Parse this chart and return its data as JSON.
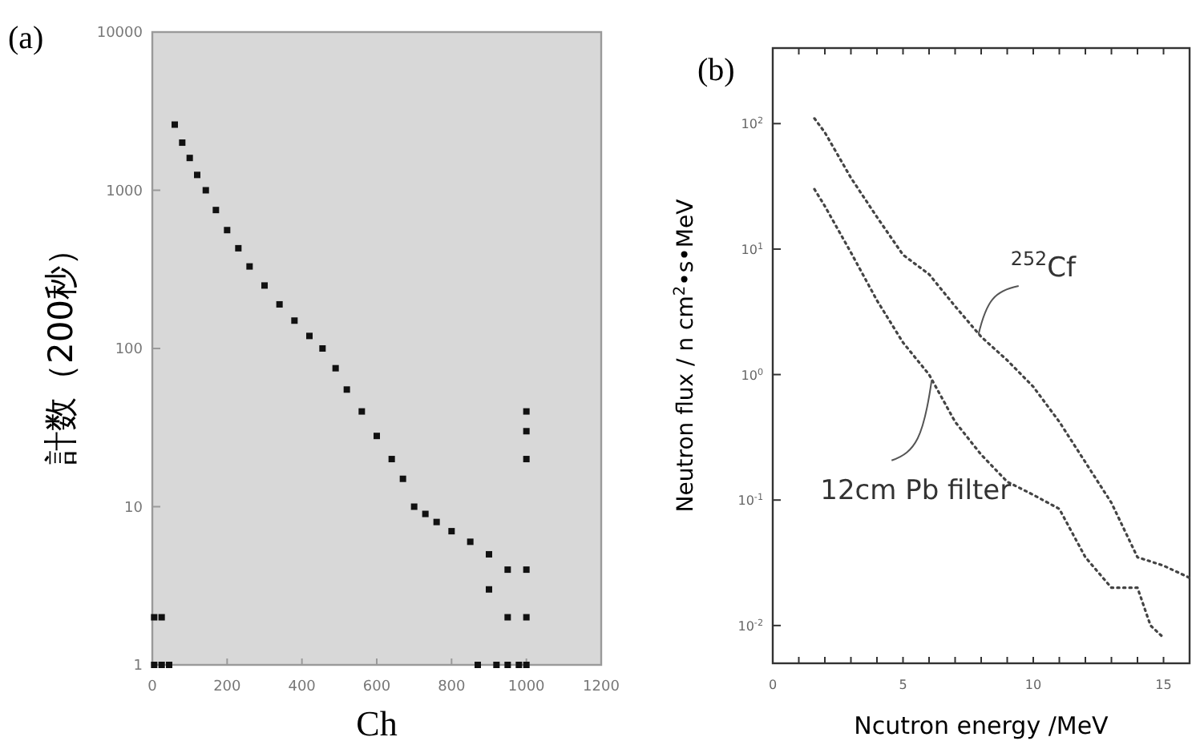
{
  "chart_data": [
    {
      "type": "scatter",
      "title": "(a)",
      "xlabel": "Ch",
      "ylabel": "計数（200秒）",
      "log": "y",
      "marker": "square",
      "xlim": [
        0,
        1200
      ],
      "xticks": [
        0,
        200,
        400,
        600,
        800,
        1000,
        1200
      ],
      "ylim": [
        1,
        10000
      ],
      "yticks": [
        1,
        10,
        100,
        1000,
        10000
      ],
      "series": [
        {
          "color": "#111111",
          "x": [
            60,
            80,
            100,
            120,
            143,
            170,
            200,
            230,
            260,
            300,
            340,
            380,
            420,
            455,
            490,
            520,
            560,
            600,
            640,
            670,
            700,
            730,
            760,
            800,
            850,
            900,
            950,
            1000,
            900,
            950,
            1000,
            950,
            1000,
            870,
            920,
            980,
            5,
            25,
            45,
            5,
            25,
            1000,
            1000,
            1000
          ],
          "values": [
            2600,
            2000,
            1600,
            1250,
            1000,
            750,
            560,
            430,
            330,
            250,
            190,
            150,
            120,
            100,
            75,
            55,
            40,
            28,
            20,
            15,
            10,
            9,
            8,
            7,
            6,
            5,
            4,
            4,
            3,
            2,
            2,
            1,
            1,
            1,
            1,
            1,
            1,
            1,
            1,
            2,
            2,
            20,
            30,
            40
          ]
        }
      ]
    },
    {
      "type": "line",
      "title": "(b)",
      "xlabel": "Ncutron energy /MeV",
      "ylabel": "Neutron flux / n cm$^{2}$•s•MeV",
      "log": "y",
      "line_style": "dotted",
      "xlim": [
        0,
        16
      ],
      "xticks": [
        0,
        {
          "value": 1,
          "label": null
        },
        {
          "value": 2,
          "label": null
        },
        {
          "value": 3,
          "label": null
        },
        {
          "value": 4,
          "label": null
        },
        5,
        {
          "value": 6,
          "label": null
        },
        {
          "value": 7,
          "label": null
        },
        {
          "value": 8,
          "label": null
        },
        {
          "value": 9,
          "label": null
        },
        10,
        {
          "value": 11,
          "label": null
        },
        {
          "value": 12,
          "label": null
        },
        {
          "value": 13,
          "label": null
        },
        {
          "value": 14,
          "label": null
        },
        15
      ],
      "ylim": [
        0.005,
        400
      ],
      "yticks": [
        {
          "value": 0.01,
          "label": "10$^{-2}$"
        },
        {
          "value": 0.1,
          "label": "10$^{-1}$"
        },
        {
          "value": 1,
          "label": "10$^{0}$"
        },
        {
          "value": 10,
          "label": "10$^{1}$"
        },
        {
          "value": 100,
          "label": "10$^{2}$"
        }
      ],
      "series": [
        {
          "color": "#444444",
          "x": [
            1.6,
            2,
            3,
            4,
            5,
            6,
            7,
            8,
            9,
            10,
            11,
            12,
            13,
            14,
            15,
            16
          ],
          "values": [
            110,
            85,
            37,
            18,
            9,
            6.3,
            3.5,
            2,
            1.3,
            0.8,
            0.42,
            0.2,
            0.095,
            0.035,
            0.03,
            0.024
          ]
        },
        {
          "color": "#444444",
          "x": [
            1.6,
            2,
            3,
            4,
            5,
            6,
            7,
            8,
            9,
            10,
            11,
            12,
            13,
            14,
            14.5,
            15
          ],
          "values": [
            30,
            22,
            9.4,
            3.9,
            1.8,
            1,
            0.42,
            0.23,
            0.14,
            0.11,
            0.085,
            0.035,
            0.02,
            0.02,
            0.01,
            0.008
          ]
        }
      ],
      "annotations": [
        {
          "text": "$^{252}$Cf",
          "x": 7.9,
          "y": 2.1
        },
        {
          "text": "12cm Pb filter",
          "x": 6.1,
          "y": 0.9
        }
      ]
    }
  ]
}
